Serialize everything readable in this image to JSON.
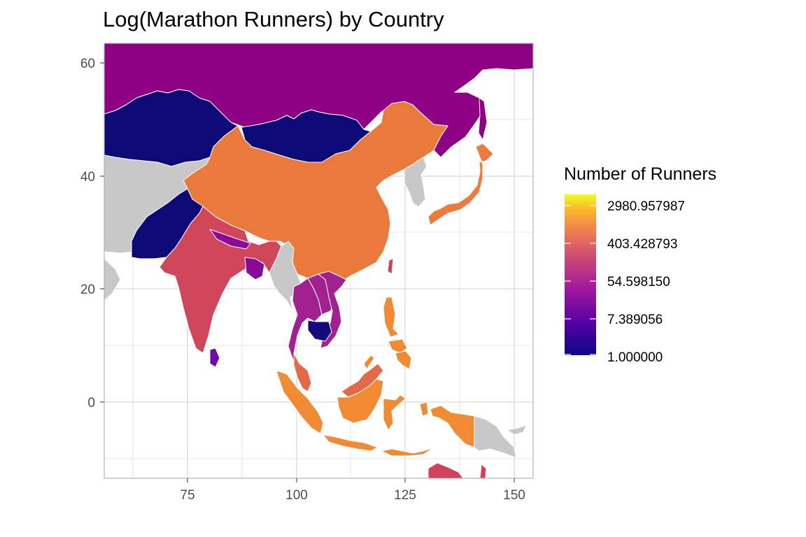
{
  "title": "Log(Marathon Runners) by Country",
  "chart_data": {
    "type": "choropleth",
    "title": "Log(Marathon Runners) by Country",
    "xlabel": "",
    "ylabel": "",
    "xlim": [
      55,
      154
    ],
    "ylim": [
      -13,
      64
    ],
    "x_ticks": [
      75,
      100,
      125,
      150
    ],
    "y_ticks": [
      0,
      20,
      40,
      60
    ],
    "grid": true,
    "legend": {
      "title": "Number of Runners",
      "position": "right",
      "scale": "log",
      "palette": "plasma",
      "labels": [
        "2980.957987",
        "403.428793",
        "54.598150",
        "7.389056",
        "1.000000"
      ],
      "colors": [
        "#F0F921",
        "#F89540",
        "#CC4778",
        "#7E03A8",
        "#0D0887"
      ]
    },
    "no_data_color": "#C8C8C8",
    "regions": [
      {
        "name": "Russia",
        "color": "#8E0185"
      },
      {
        "name": "Kazakhstan",
        "color": "#0D0A78"
      },
      {
        "name": "Mongolia",
        "color": "#0D0A78"
      },
      {
        "name": "China",
        "color": "#E97A3C"
      },
      {
        "name": "Japan",
        "color": "#EC7B3D"
      },
      {
        "name": "India",
        "color": "#D0475B"
      },
      {
        "name": "Pakistan",
        "color": "#0D0A78"
      },
      {
        "name": "Nepal",
        "color": "#8A0A98"
      },
      {
        "name": "Bangladesh",
        "color": "#8A0A98"
      },
      {
        "name": "Sri Lanka",
        "color": "#6E0AA5"
      },
      {
        "name": "Thailand",
        "color": "#A0218F"
      },
      {
        "name": "Vietnam",
        "color": "#A0218F"
      },
      {
        "name": "Laos",
        "color": "#A0218F"
      },
      {
        "name": "Cambodia",
        "color": "#140A7C"
      },
      {
        "name": "Malaysia",
        "color": "#E26A48"
      },
      {
        "name": "Indonesia",
        "color": "#F08A33"
      },
      {
        "name": "Philippines",
        "color": "#F08A33"
      },
      {
        "name": "Taiwan",
        "color": "#D2405C"
      },
      {
        "name": "Papua New Guinea",
        "color": "#F08A33"
      },
      {
        "name": "Australia",
        "color": "#D2405C"
      }
    ]
  }
}
